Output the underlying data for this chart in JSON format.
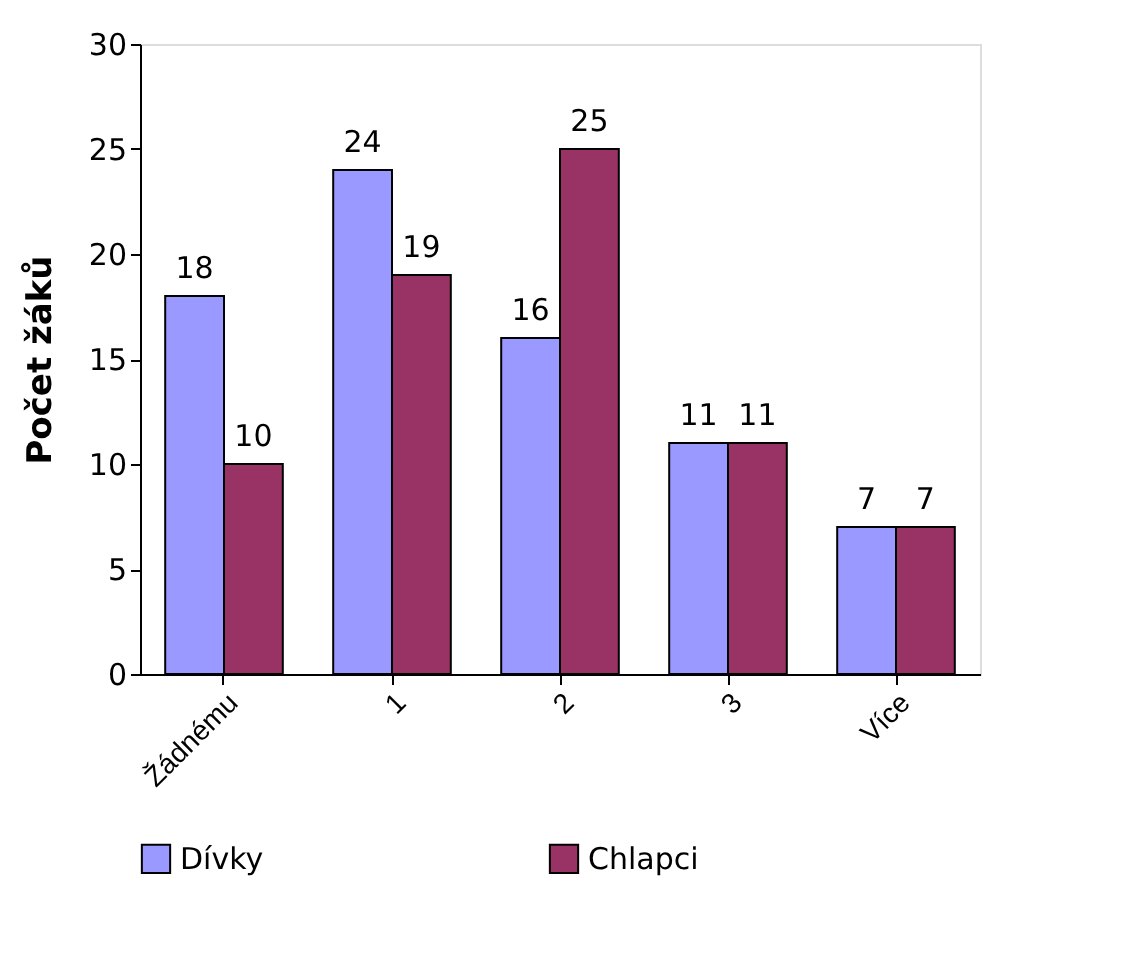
{
  "chart_data": {
    "type": "bar",
    "ylabel": "Počet žáků",
    "categories": [
      "Žádnému",
      "1",
      "2",
      "3",
      "Více"
    ],
    "series": [
      {
        "name": "Dívky",
        "color": "#9999ff",
        "values": [
          18,
          24,
          16,
          11,
          7
        ]
      },
      {
        "name": "Chlapci",
        "color": "#993366",
        "values": [
          10,
          19,
          25,
          11,
          7
        ]
      }
    ],
    "ylim": [
      0,
      30
    ],
    "yticks": [
      0,
      5,
      10,
      15,
      20,
      25,
      30
    ],
    "grid": false,
    "legend": "bottom",
    "data_labels": true
  }
}
